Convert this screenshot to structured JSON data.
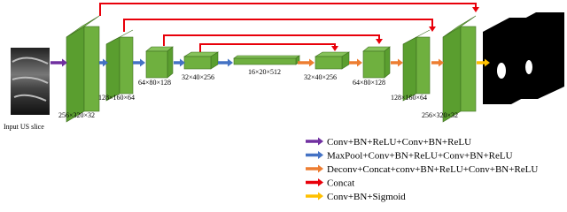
{
  "input_label": "Input US slice",
  "blocks": [
    {
      "label": "256×320×32"
    },
    {
      "label": "128×160×64"
    },
    {
      "label": "64×80×128"
    },
    {
      "label": "32×40×256"
    },
    {
      "label": "16×20×512"
    },
    {
      "label": "32×40×256"
    },
    {
      "label": "64×80×128"
    },
    {
      "label": "128×160×64"
    },
    {
      "label": "256×320×32"
    }
  ],
  "legend": [
    {
      "label": "Conv+BN+ReLU+Conv+BN+ReLU"
    },
    {
      "label": "MaxPool+Conv+BN+ReLU+Conv+BN+ReLU"
    },
    {
      "label": "Deconv+Concat+conv+BN+ReLU+Conv+BN+ReLU"
    },
    {
      "label": "Concat"
    },
    {
      "label": "Conv+BN+Sigmoid"
    }
  ]
}
